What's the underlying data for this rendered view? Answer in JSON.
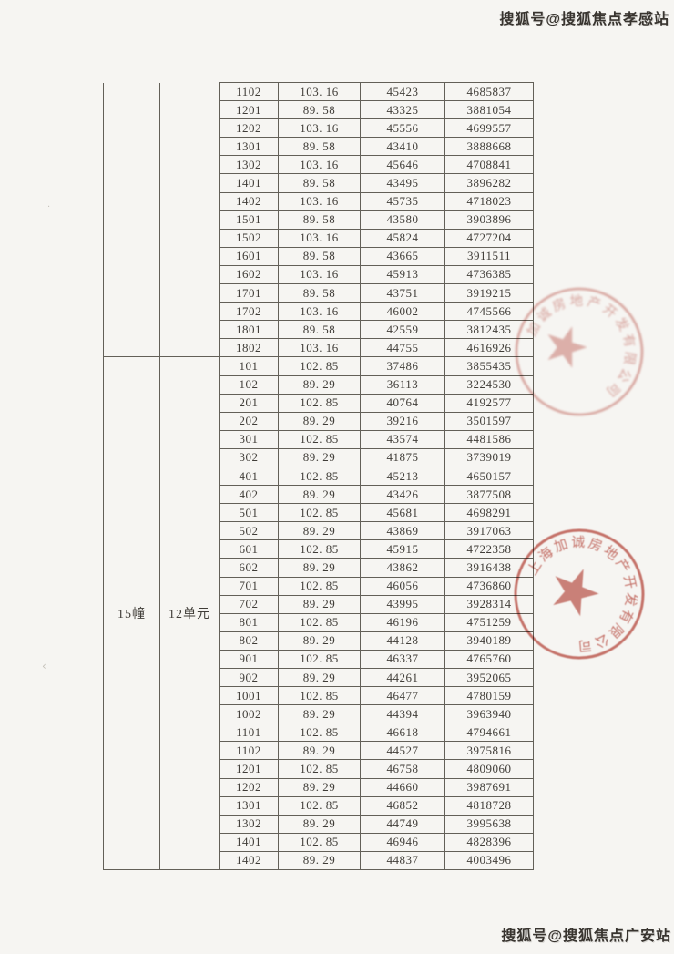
{
  "page": {
    "background_color": "#f6f5f2",
    "type": "scanned price disclosure table"
  },
  "watermarks": {
    "top": "搜狐号@搜狐焦点孝感站",
    "bottom": "搜狐号@搜狐焦点广安站"
  },
  "artifacts": {
    "mark1": "·",
    "mark2": "‹"
  },
  "colors": {
    "table_line": "#636058",
    "ink": "#403d38",
    "seal_red": "#c0554b",
    "watermark_ink": "#38342f"
  },
  "table": {
    "columns": [
      "building",
      "unit",
      "room",
      "area_sqm",
      "unit_price",
      "total_price"
    ],
    "sections": [
      {
        "building": "",
        "unit": "",
        "rows": [
          [
            "1102",
            "103. 16",
            "45423",
            "4685837"
          ],
          [
            "1201",
            "89. 58",
            "43325",
            "3881054"
          ],
          [
            "1202",
            "103. 16",
            "45556",
            "4699557"
          ],
          [
            "1301",
            "89. 58",
            "43410",
            "3888668"
          ],
          [
            "1302",
            "103. 16",
            "45646",
            "4708841"
          ],
          [
            "1401",
            "89. 58",
            "43495",
            "3896282"
          ],
          [
            "1402",
            "103. 16",
            "45735",
            "4718023"
          ],
          [
            "1501",
            "89. 58",
            "43580",
            "3903896"
          ],
          [
            "1502",
            "103. 16",
            "45824",
            "4727204"
          ],
          [
            "1601",
            "89. 58",
            "43665",
            "3911511"
          ],
          [
            "1602",
            "103. 16",
            "45913",
            "4736385"
          ],
          [
            "1701",
            "89. 58",
            "43751",
            "3919215"
          ],
          [
            "1702",
            "103. 16",
            "46002",
            "4745566"
          ],
          [
            "1801",
            "89. 58",
            "42559",
            "3812435"
          ],
          [
            "1802",
            "103. 16",
            "44755",
            "4616926"
          ]
        ]
      },
      {
        "building": "15幢",
        "unit": "12单元",
        "rows": [
          [
            "101",
            "102. 85",
            "37486",
            "3855435"
          ],
          [
            "102",
            "89. 29",
            "36113",
            "3224530"
          ],
          [
            "201",
            "102. 85",
            "40764",
            "4192577"
          ],
          [
            "202",
            "89. 29",
            "39216",
            "3501597"
          ],
          [
            "301",
            "102. 85",
            "43574",
            "4481586"
          ],
          [
            "302",
            "89. 29",
            "41875",
            "3739019"
          ],
          [
            "401",
            "102. 85",
            "45213",
            "4650157"
          ],
          [
            "402",
            "89. 29",
            "43426",
            "3877508"
          ],
          [
            "501",
            "102. 85",
            "45681",
            "4698291"
          ],
          [
            "502",
            "89. 29",
            "43869",
            "3917063"
          ],
          [
            "601",
            "102. 85",
            "45915",
            "4722358"
          ],
          [
            "602",
            "89. 29",
            "43862",
            "3916438"
          ],
          [
            "701",
            "102. 85",
            "46056",
            "4736860"
          ],
          [
            "702",
            "89. 29",
            "43995",
            "3928314"
          ],
          [
            "801",
            "102. 85",
            "46196",
            "4751259"
          ],
          [
            "802",
            "89. 29",
            "44128",
            "3940189"
          ],
          [
            "901",
            "102. 85",
            "46337",
            "4765760"
          ],
          [
            "902",
            "89. 29",
            "44261",
            "3952065"
          ],
          [
            "1001",
            "102. 85",
            "46477",
            "4780159"
          ],
          [
            "1002",
            "89. 29",
            "44394",
            "3963940"
          ],
          [
            "1101",
            "102. 85",
            "46618",
            "4794661"
          ],
          [
            "1102",
            "89. 29",
            "44527",
            "3975816"
          ],
          [
            "1201",
            "102. 85",
            "46758",
            "4809060"
          ],
          [
            "1202",
            "89. 29",
            "44660",
            "3987691"
          ],
          [
            "1301",
            "102. 85",
            "46852",
            "4818728"
          ],
          [
            "1302",
            "89. 29",
            "44749",
            "3995638"
          ],
          [
            "1401",
            "102. 85",
            "46946",
            "4828396"
          ],
          [
            "1402",
            "89. 29",
            "44837",
            "4003496"
          ]
        ]
      }
    ]
  },
  "stamps": [
    {
      "name": "seal-upper",
      "arc_text": "加诚房地产开发有限公司",
      "legibility": "blurred"
    },
    {
      "name": "seal-lower",
      "arc_text": "上海加诚房地产开发有限公司",
      "legibility": "partially legible"
    }
  ]
}
